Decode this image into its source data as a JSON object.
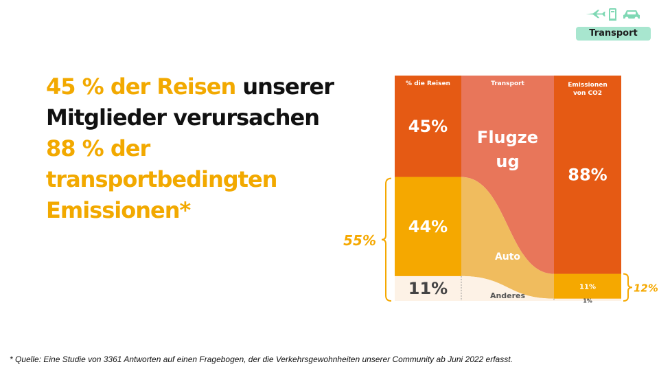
{
  "category_badge": "Transport",
  "headline": {
    "part1": "45 % der Reisen",
    "part2": "unserer Mitglieder verursachen",
    "part3": "88 %",
    "part4": "der transportbedingten Emissionen*"
  },
  "footnote": "* Quelle: Eine Studie von 3361 Antworten auf einen Fragebogen, der die Verkehrsgewohnheiten unserer Community ab Juni 2022 erfasst.",
  "icons": [
    "airplane-icon",
    "fuel-pump-icon",
    "car-icon"
  ],
  "colors": {
    "orange_dark": "#e55a14",
    "flight_band": "#e8765a",
    "yellow": "#f5a800",
    "yellow_light": "#f0bc5e",
    "cream": "#fdf2e6",
    "accent_text": "#f2a900",
    "badge": "#a8e6cf"
  },
  "chart_data": {
    "type": "alluvial",
    "columns": [
      "% die Reisen",
      "Transport",
      "Emissionen von CO2"
    ],
    "categories": [
      "Flugzeug",
      "Auto",
      "Anderes"
    ],
    "series": [
      {
        "name": "Flugzeug",
        "label": "Flugze ug",
        "trips_pct": 45,
        "emissions_pct": 88,
        "trips_label": "45%",
        "emissions_label": "88%"
      },
      {
        "name": "Auto",
        "label": "Auto",
        "trips_pct": 44,
        "emissions_pct": 11,
        "trips_label": "44%",
        "emissions_label": "11%"
      },
      {
        "name": "Anderes",
        "label": "Anderes",
        "trips_pct": 11,
        "emissions_pct": 1,
        "trips_label": "11%",
        "emissions_label": "1%"
      }
    ],
    "brackets": {
      "left_label": "55%",
      "right_label": "12%"
    }
  }
}
